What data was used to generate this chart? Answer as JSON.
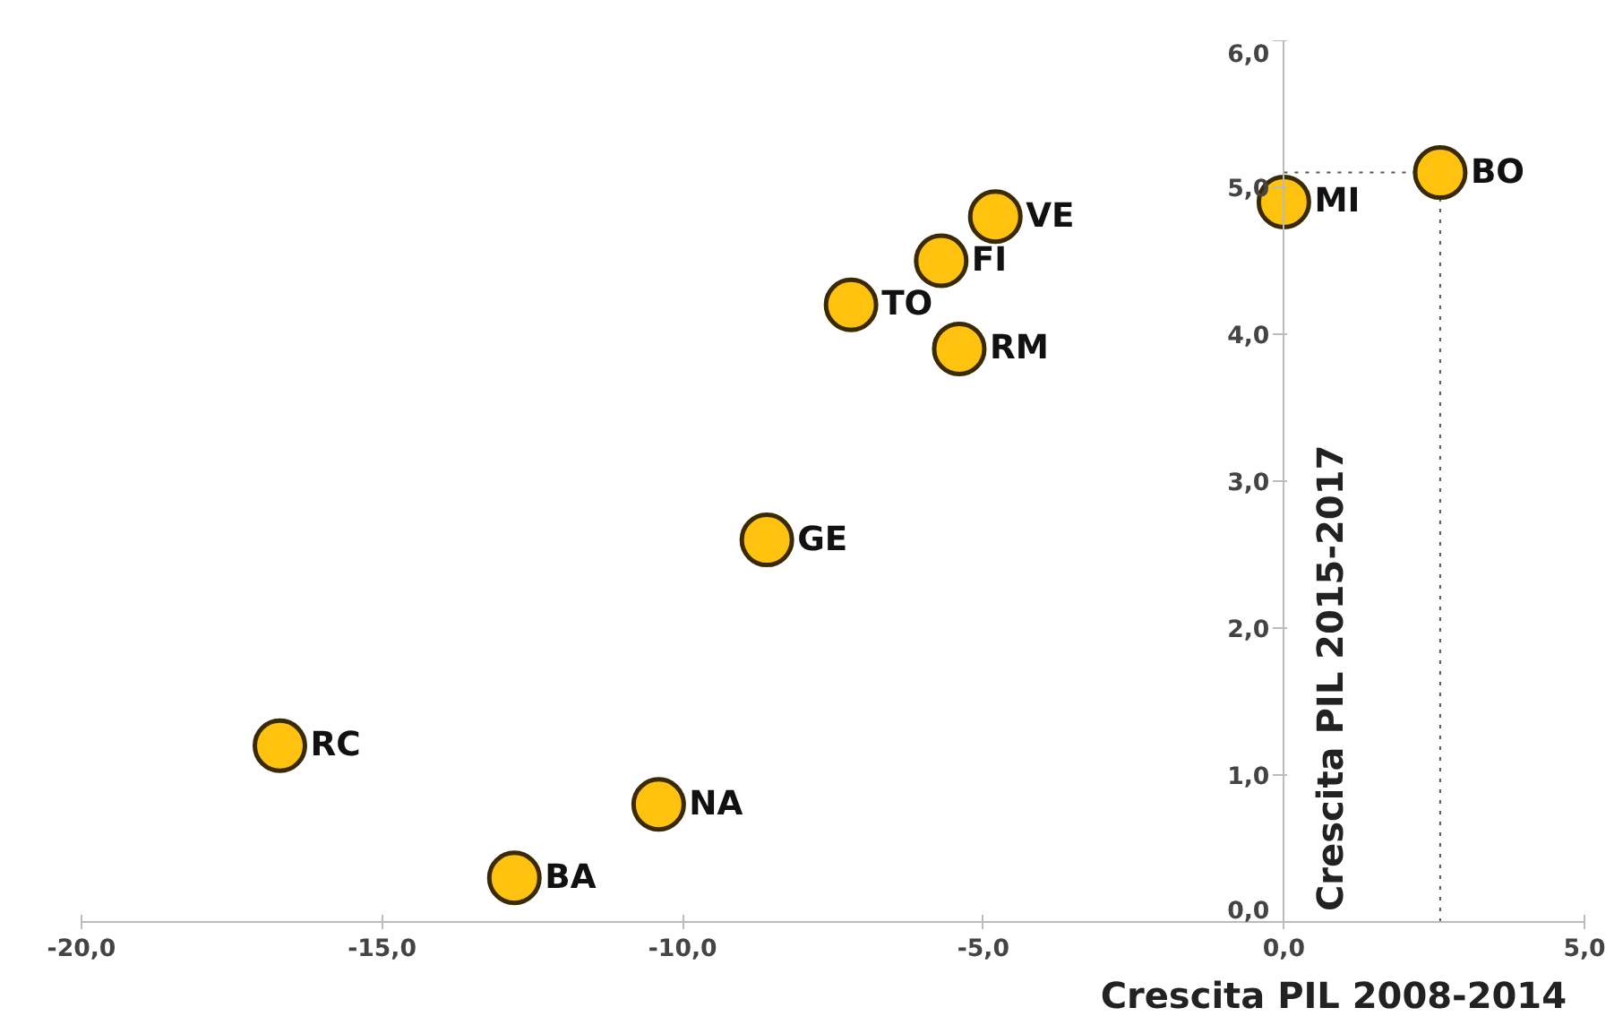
{
  "chart_data": {
    "type": "scatter",
    "xlabel": "Crescita PIL 2008-2014",
    "ylabel": "Crescita PIL 2015-2017",
    "x": [
      2.6,
      0.0,
      -4.8,
      -5.7,
      -7.2,
      -5.4,
      -8.6,
      -16.7,
      -10.4,
      -12.8
    ],
    "series": [
      {
        "color": "#ffc20e",
        "values": [
          5.1,
          4.9,
          4.8,
          4.5,
          4.2,
          3.9,
          2.6,
          1.2,
          0.8,
          0.3
        ]
      }
    ],
    "annotations": [
      {
        "text": "BO",
        "x": 2.6,
        "y": 5.1
      },
      {
        "text": "MI",
        "x": 0.0,
        "y": 4.9
      },
      {
        "text": "VE",
        "x": -4.8,
        "y": 4.8
      },
      {
        "text": "FI",
        "x": -5.7,
        "y": 4.5
      },
      {
        "text": "TO",
        "x": -7.2,
        "y": 4.2
      },
      {
        "text": "RM",
        "x": -5.4,
        "y": 3.9
      },
      {
        "text": "GE",
        "x": -8.6,
        "y": 2.6
      },
      {
        "text": "RC",
        "x": -16.7,
        "y": 1.2
      },
      {
        "text": "NA",
        "x": -10.4,
        "y": 0.8
      },
      {
        "text": "BA",
        "x": -12.8,
        "y": 0.3
      }
    ],
    "ref_lines": [
      {
        "axis": "x",
        "value": 2.6,
        "label": null,
        "line_style": "dotted"
      },
      {
        "axis": "y",
        "value": 5.1,
        "label": null,
        "line_style": "dotted"
      }
    ],
    "xlim": [
      -20,
      5
    ],
    "ylim": [
      0,
      6
    ],
    "xticks": [
      {
        "value": -20,
        "label": "-20,0"
      },
      {
        "value": -15,
        "label": "-15,0"
      },
      {
        "value": -10,
        "label": "-10,0"
      },
      {
        "value": -5,
        "label": "-5,0"
      },
      {
        "value": 0,
        "label": "0,0"
      },
      {
        "value": 5,
        "label": "5,0"
      }
    ],
    "yticks": [
      {
        "value": 0,
        "label": "0,0"
      },
      {
        "value": 1,
        "label": "1,0"
      },
      {
        "value": 2,
        "label": "2,0"
      },
      {
        "value": 3,
        "label": "3,0"
      },
      {
        "value": 4,
        "label": "4,0"
      },
      {
        "value": 5,
        "label": "5,0"
      },
      {
        "value": 6,
        "label": "6,0"
      }
    ],
    "marker": "circle",
    "grid": false
  }
}
